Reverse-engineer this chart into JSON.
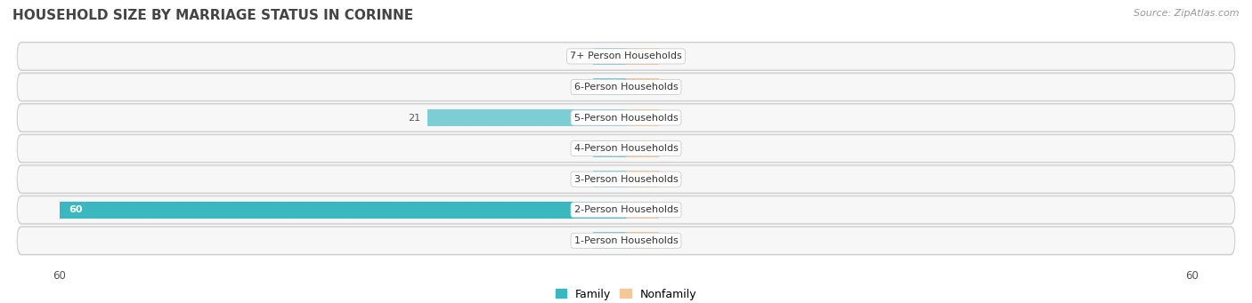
{
  "title": "HOUSEHOLD SIZE BY MARRIAGE STATUS IN CORINNE",
  "source": "Source: ZipAtlas.com",
  "categories": [
    "1-Person Households",
    "2-Person Households",
    "3-Person Households",
    "4-Person Households",
    "5-Person Households",
    "6-Person Households",
    "7+ Person Households"
  ],
  "family_values": [
    0,
    60,
    0,
    0,
    21,
    0,
    0
  ],
  "nonfamily_values": [
    0,
    0,
    0,
    0,
    0,
    0,
    0
  ],
  "family_color_small": "#7DCDD4",
  "family_color_large": "#3BB8BF",
  "nonfamily_color": "#F5C89A",
  "stub_size": 3.5,
  "xlim_left": -65,
  "xlim_right": 65,
  "xtick_left": -60,
  "xtick_right": 60,
  "bar_height": 0.55,
  "row_bg_outer": "#E0E0E0",
  "row_bg_inner": "#F4F4F4",
  "label_bg_color": "#FFFFFF",
  "title_fontsize": 11,
  "source_fontsize": 8,
  "label_fontsize": 8,
  "value_fontsize": 8
}
